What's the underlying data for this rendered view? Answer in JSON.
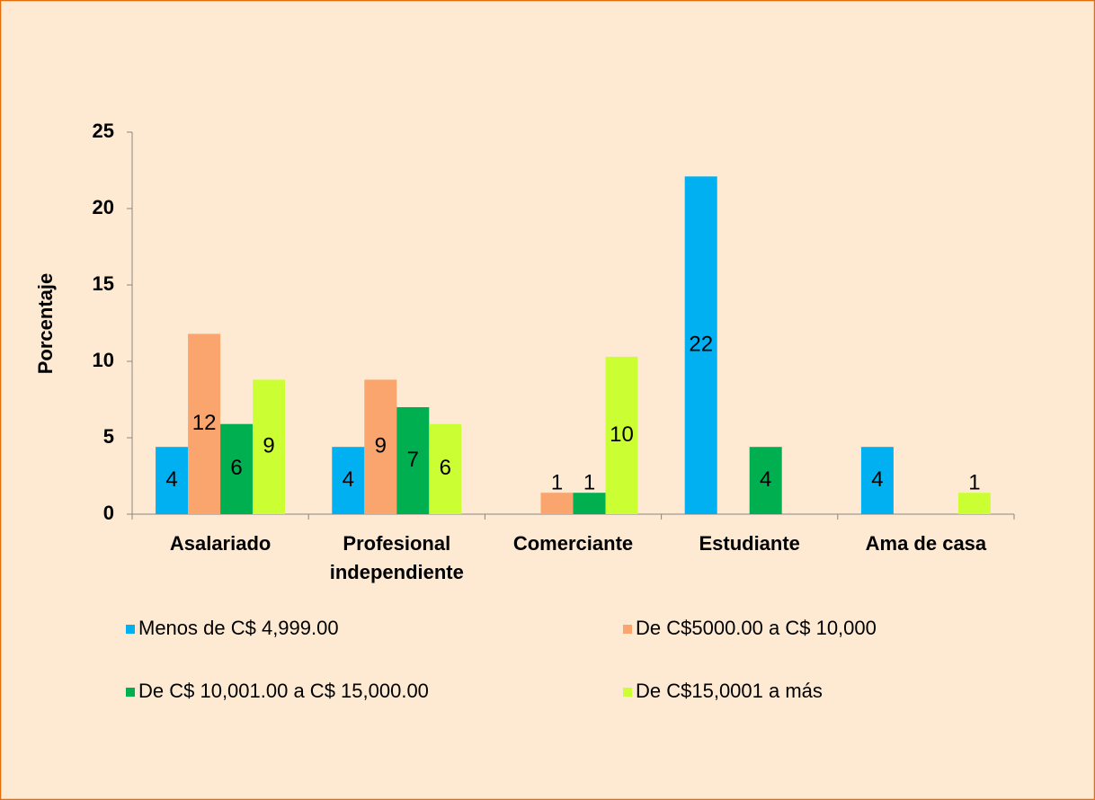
{
  "chart_data": {
    "type": "bar",
    "y_label": "Porcentaje",
    "categories": [
      "Asalariado",
      "Profesional independiente",
      "Comerciante",
      "Estudiante",
      "Ama de casa"
    ],
    "series": [
      {
        "name": "Menos de C$ 4,999.00",
        "color": "#00B0F0",
        "values": [
          4.4,
          4.4,
          null,
          22.1,
          4.4
        ],
        "value_labels": [
          "4",
          "4",
          null,
          "22",
          "4"
        ]
      },
      {
        "name": "De C$5000.00 a C$ 10,000",
        "color": "#FAA46E",
        "values": [
          11.8,
          8.8,
          1.4,
          null,
          null
        ],
        "value_labels": [
          "12",
          "9",
          "1",
          null,
          null
        ]
      },
      {
        "name": "De C$ 10,001.00 a C$ 15,000.00",
        "color": "#00B050",
        "values": [
          5.9,
          7,
          1.4,
          4.4,
          null
        ],
        "value_labels": [
          "6",
          "7",
          "1",
          "4",
          null
        ]
      },
      {
        "name": "De C$15,0001 a más",
        "color": "#CCFF33",
        "values": [
          8.8,
          5.9,
          10.3,
          null,
          1.4
        ],
        "value_labels": [
          "9",
          "6",
          "10",
          null,
          "1"
        ]
      }
    ],
    "ylim": [
      0,
      25
    ],
    "yticks": [
      0,
      5,
      10,
      15,
      20,
      25
    ],
    "grid": false
  }
}
